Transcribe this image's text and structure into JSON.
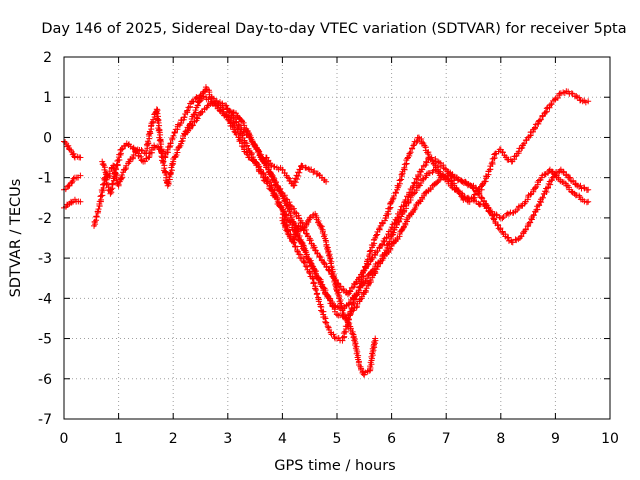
{
  "chart_data": {
    "type": "scatter",
    "title": "Day 146 of 2025, Sidereal Day-to-day VTEC variation (SDTVAR) for receiver 5pta",
    "xlabel": "GPS time / hours",
    "ylabel": "SDTVAR / TECUs",
    "xlim": [
      0,
      10
    ],
    "ylim": [
      -7,
      2
    ],
    "xticks": [
      "0",
      "1",
      "2",
      "3",
      "4",
      "5",
      "6",
      "7",
      "8",
      "9",
      "10"
    ],
    "yticks": [
      "2",
      "1",
      "0",
      "-1",
      "-2",
      "-3",
      "-4",
      "-5",
      "-6",
      "-7"
    ],
    "grid": true,
    "marker": "+",
    "color": "#ff0000",
    "series": [
      {
        "name": "track-1",
        "x": [
          0,
          0.1,
          0.2,
          0.3
        ],
        "y": [
          -0.1,
          -0.3,
          -0.5,
          -0.5
        ]
      },
      {
        "name": "track-2",
        "x": [
          0,
          0.1,
          0.2,
          0.3
        ],
        "y": [
          -1.3,
          -1.2,
          -1.0,
          -0.95
        ]
      },
      {
        "name": "track-3",
        "x": [
          0,
          0.1,
          0.2,
          0.3
        ],
        "y": [
          -1.75,
          -1.65,
          -1.55,
          -1.6
        ]
      },
      {
        "name": "track-4",
        "x": [
          0.55,
          0.65,
          0.75,
          0.85,
          0.95,
          1.05,
          1.15,
          1.3,
          1.45,
          1.55,
          1.65,
          1.75,
          1.85,
          1.95,
          2.05,
          2.2,
          2.35,
          2.5,
          2.6,
          2.75,
          2.9,
          3.0,
          3.1,
          3.2,
          3.3,
          3.4,
          3.5,
          3.6,
          3.7,
          3.8,
          3.9,
          4.0,
          4.1,
          4.2,
          4.3,
          4.4,
          4.55,
          4.7,
          4.8,
          4.9,
          5.0,
          5.1,
          5.2,
          5.3,
          5.4,
          5.5,
          5.6,
          5.7,
          5.8,
          5.9,
          6.0,
          6.1,
          6.2,
          6.3,
          6.4,
          6.5,
          6.6,
          6.7,
          6.8,
          6.9,
          7.0,
          7.1,
          7.2,
          7.3,
          7.4,
          7.5,
          7.6,
          7.7,
          7.8,
          7.9,
          8.0,
          8.1,
          8.2,
          8.3,
          8.4,
          8.5,
          8.6,
          8.7,
          8.8,
          8.9,
          9.0,
          9.1,
          9.2,
          9.3,
          9.4,
          9.5,
          9.6
        ],
        "y": [
          -2.2,
          -1.7,
          -1.0,
          -1.4,
          -0.8,
          -0.3,
          -0.15,
          -0.3,
          -0.6,
          -0.5,
          -0.2,
          -0.3,
          -0.5,
          -0.15,
          0.2,
          0.5,
          0.9,
          1.05,
          1.0,
          0.85,
          0.6,
          0.5,
          0.2,
          0.0,
          -0.3,
          -0.5,
          -0.6,
          -0.8,
          -1.0,
          -1.2,
          -1.5,
          -1.8,
          -2.3,
          -2.6,
          -2.9,
          -3.1,
          -3.5,
          -4.2,
          -4.6,
          -4.9,
          -5.0,
          -5.05,
          -4.6,
          -4.1,
          -3.8,
          -3.3,
          -2.9,
          -2.5,
          -2.2,
          -2.0,
          -1.6,
          -1.3,
          -0.9,
          -0.5,
          -0.2,
          0.0,
          -0.2,
          -0.5,
          -0.7,
          -0.9,
          -1.0,
          -1.1,
          -1.3,
          -1.5,
          -1.6,
          -1.5,
          -1.3,
          -1.1,
          -0.8,
          -0.4,
          -0.3,
          -0.5,
          -0.6,
          -0.4,
          -0.2,
          0.0,
          0.2,
          0.4,
          0.6,
          0.8,
          0.95,
          1.1,
          1.15,
          1.1,
          1.0,
          0.9,
          0.9
        ]
      },
      {
        "name": "track-5",
        "x": [
          0.7,
          0.8,
          0.9,
          1.0,
          1.1,
          1.2,
          1.35,
          1.5,
          1.6,
          1.7,
          1.8,
          1.9,
          2.0,
          2.15,
          2.3,
          2.45,
          2.6,
          2.75,
          2.9,
          3.05,
          3.2,
          3.35,
          3.5,
          3.65,
          3.8,
          3.95,
          4.1,
          4.25,
          4.4,
          4.55,
          4.7,
          4.85,
          5.0,
          5.15,
          5.3,
          5.45,
          5.6,
          5.75,
          5.9,
          6.05,
          6.2,
          6.35,
          6.5,
          6.65,
          6.8,
          6.95,
          7.1,
          7.25,
          7.4,
          7.55,
          7.7,
          7.85,
          8.0,
          8.15,
          8.3,
          8.45,
          8.6,
          8.75,
          8.9,
          9.05,
          9.2,
          9.35,
          9.5,
          9.6
        ],
        "y": [
          -0.6,
          -1.0,
          -0.7,
          -1.2,
          -0.8,
          -0.6,
          -0.3,
          -0.4,
          0.3,
          0.7,
          -0.5,
          -1.2,
          -0.6,
          -0.1,
          0.3,
          0.8,
          1.25,
          0.9,
          0.7,
          0.4,
          0.2,
          -0.2,
          -0.6,
          -1.0,
          -1.3,
          -1.7,
          -2.0,
          -2.4,
          -2.8,
          -3.2,
          -3.6,
          -4.0,
          -4.4,
          -4.5,
          -4.3,
          -4.0,
          -3.6,
          -3.2,
          -2.8,
          -2.3,
          -1.9,
          -1.5,
          -1.2,
          -0.9,
          -0.8,
          -1.0,
          -1.2,
          -1.4,
          -1.5,
          -1.6,
          -1.7,
          -1.9,
          -2.0,
          -1.9,
          -1.8,
          -1.6,
          -1.3,
          -1.0,
          -0.8,
          -1.0,
          -1.2,
          -1.4,
          -1.55,
          -1.6
        ]
      },
      {
        "name": "track-6",
        "x": [
          2.2,
          2.35,
          2.5,
          2.65,
          2.8,
          2.95,
          3.1,
          3.25,
          3.4,
          3.55,
          3.7,
          3.85,
          4.0,
          4.15,
          4.3,
          4.45,
          4.6,
          4.75,
          4.9,
          5.05,
          5.2,
          5.35,
          5.5,
          5.65,
          5.8,
          5.95,
          6.1,
          6.25,
          6.4,
          6.55,
          6.7,
          6.85,
          7.0,
          7.15,
          7.3,
          7.45,
          7.6,
          7.75,
          7.9,
          8.05,
          8.2,
          8.35,
          8.5,
          8.65,
          8.8,
          8.95,
          9.1,
          9.25,
          9.4,
          9.6
        ],
        "y": [
          0.1,
          0.3,
          0.6,
          0.8,
          0.9,
          0.8,
          0.5,
          0.2,
          0.0,
          -0.3,
          -0.7,
          -1.1,
          -1.4,
          -1.7,
          -2.0,
          -2.4,
          -2.8,
          -3.1,
          -3.4,
          -3.7,
          -3.9,
          -3.6,
          -3.3,
          -3.0,
          -2.7,
          -2.4,
          -2.0,
          -1.6,
          -1.2,
          -0.8,
          -0.5,
          -0.6,
          -0.8,
          -1.0,
          -1.1,
          -1.2,
          -1.4,
          -1.7,
          -2.1,
          -2.4,
          -2.6,
          -2.5,
          -2.2,
          -1.8,
          -1.4,
          -1.0,
          -0.8,
          -1.0,
          -1.2,
          -1.3
        ]
      },
      {
        "name": "track-7",
        "x": [
          3.0,
          3.15,
          3.3,
          3.45,
          3.6,
          3.75,
          3.9,
          4.05,
          4.2,
          4.35,
          4.5,
          4.65,
          4.8,
          4.95,
          5.1,
          5.25,
          5.4,
          5.55,
          5.7,
          5.85,
          6.0,
          6.15,
          6.3,
          6.45,
          6.6,
          6.75,
          6.9,
          7.05,
          7.2,
          7.35,
          7.5,
          7.65
        ],
        "y": [
          0.7,
          0.6,
          0.3,
          -0.1,
          -0.5,
          -0.8,
          -1.2,
          -1.6,
          -2.1,
          -2.6,
          -3.1,
          -3.5,
          -3.9,
          -4.2,
          -4.3,
          -4.1,
          -3.8,
          -3.5,
          -3.2,
          -3.0,
          -2.7,
          -2.4,
          -2.0,
          -1.7,
          -1.4,
          -1.2,
          -1.0,
          -0.9,
          -1.0,
          -1.1,
          -1.2,
          -1.3
        ]
      },
      {
        "name": "track-8",
        "x": [
          3.7,
          3.8,
          3.9,
          4.0,
          4.1,
          4.2,
          4.35,
          4.5,
          4.65,
          4.8
        ],
        "y": [
          -0.5,
          -0.7,
          -0.75,
          -0.8,
          -1.0,
          -1.2,
          -0.7,
          -0.8,
          -0.9,
          -1.1
        ]
      },
      {
        "name": "track-9",
        "x": [
          4.0,
          4.1,
          4.2,
          4.3,
          4.4,
          4.5,
          4.6,
          4.7,
          4.8,
          4.9,
          5.0,
          5.1,
          5.2,
          5.3,
          5.4,
          5.5,
          5.6,
          5.7
        ],
        "y": [
          -2.0,
          -2.4,
          -2.6,
          -2.2,
          -2.3,
          -2.0,
          -1.9,
          -2.2,
          -2.6,
          -3.2,
          -3.8,
          -4.3,
          -4.6,
          -4.9,
          -5.6,
          -5.9,
          -5.8,
          -5.0
        ]
      }
    ]
  }
}
